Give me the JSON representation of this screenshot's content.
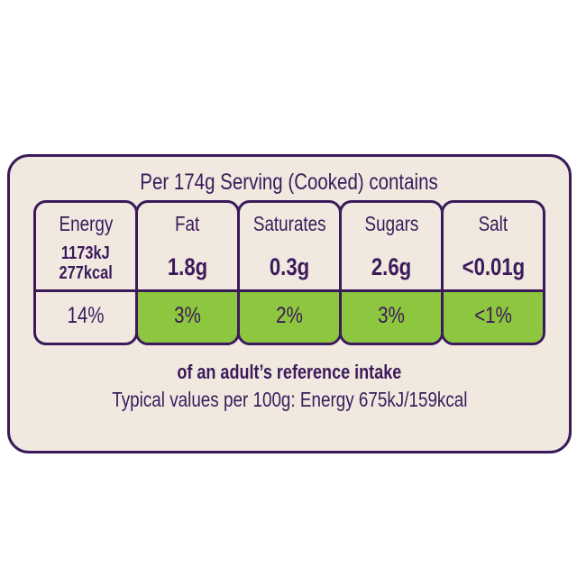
{
  "title": "Per 174g Serving (Cooked) contains",
  "nutrients": [
    {
      "name": "Energy",
      "value": "1173kJ",
      "value2": "277kcal",
      "percent": "14%",
      "color": "#f1e9e0"
    },
    {
      "name": "Fat",
      "value": "1.8g",
      "percent": "3%",
      "color": "#8dc63f"
    },
    {
      "name": "Saturates",
      "value": "0.3g",
      "percent": "2%",
      "color": "#8dc63f"
    },
    {
      "name": "Sugars",
      "value": "2.6g",
      "percent": "3%",
      "color": "#8dc63f"
    },
    {
      "name": "Salt",
      "value": "<0.01g",
      "percent": "<1%",
      "color": "#8dc63f"
    }
  ],
  "reference": "of an adult’s reference intake",
  "typical": "Typical values per 100g: Energy 675kJ/159kcal",
  "colors": {
    "border": "#3b1a5a",
    "background": "#f1e9e0",
    "green": "#8dc63f"
  }
}
